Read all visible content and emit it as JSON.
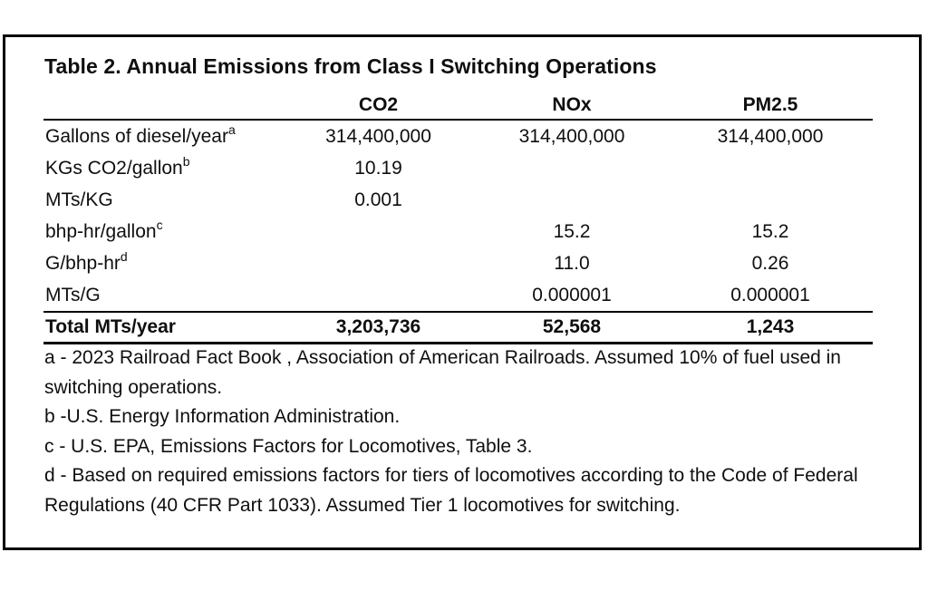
{
  "title": "Table 2. Annual Emissions from Class I Switching Operations",
  "table": {
    "columns": [
      "CO2",
      "NOx",
      "PM2.5"
    ],
    "rows": [
      {
        "label": "Gallons of diesel/year",
        "sup": "a",
        "values": [
          "314,400,000",
          "314,400,000",
          "314,400,000"
        ]
      },
      {
        "label": "KGs CO2/gallon",
        "sup": "b",
        "values": [
          "10.19",
          "",
          ""
        ]
      },
      {
        "label": "MTs/KG",
        "sup": "",
        "values": [
          "0.001",
          "",
          ""
        ]
      },
      {
        "label": "bhp-hr/gallon",
        "sup": "c",
        "values": [
          "",
          "15.2",
          "15.2"
        ]
      },
      {
        "label": "G/bhp-hr",
        "sup": "d",
        "values": [
          "",
          "11.0",
          "0.26"
        ]
      },
      {
        "label": "MTs/G",
        "sup": "",
        "values": [
          "",
          "0.000001",
          "0.000001"
        ]
      }
    ],
    "total_row": {
      "label": "Total MTs/year",
      "values": [
        "3,203,736",
        "52,568",
        "1,243"
      ]
    }
  },
  "footnotes": [
    "a - 2023 Railroad Fact Book , Association of American Railroads. Assumed 10% of fuel used in switching operations.",
    "b -U.S. Energy Information Administration.",
    "c - U.S. EPA, Emissions Factors for Locomotives, Table 3.",
    "d - Based on required emissions factors for tiers of locomotives according to the Code of Federal Regulations (40 CFR Part 1033). Assumed Tier 1 locomotives for switching."
  ],
  "colors": {
    "text": "#0f0f0f",
    "border": "#000000",
    "background": "#ffffff"
  }
}
